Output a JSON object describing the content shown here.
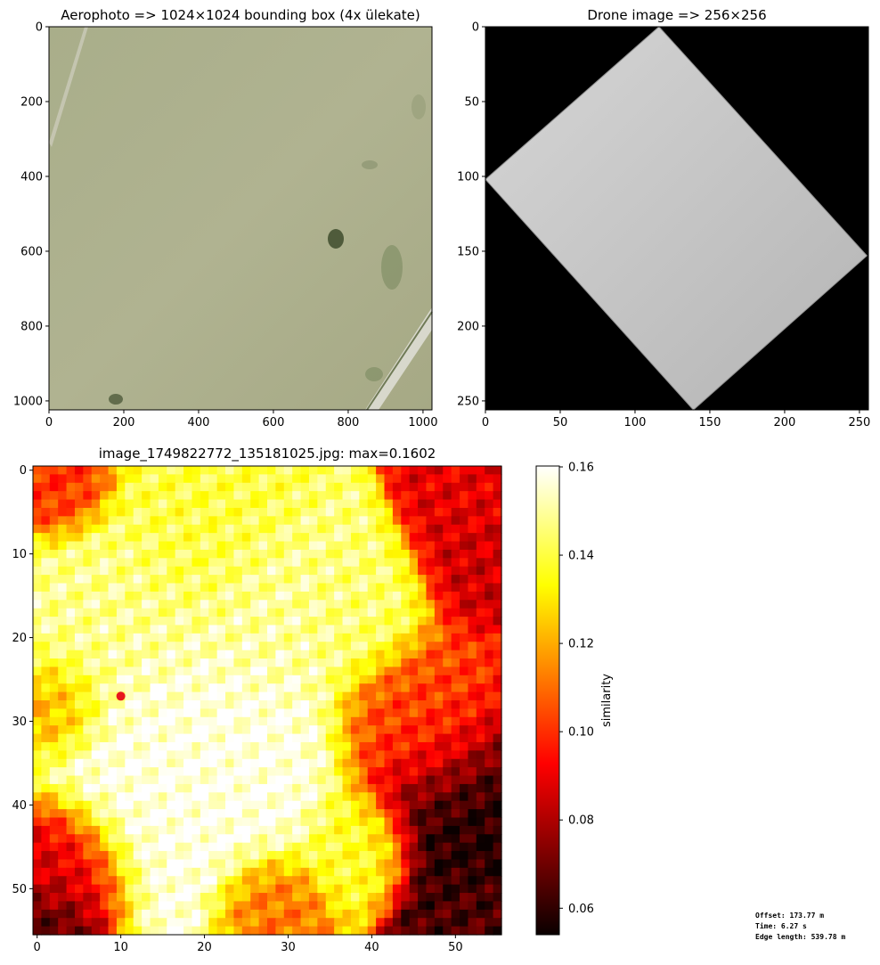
{
  "chart_data": [
    {
      "type": "image",
      "title": "Aerophoto => 1024×1024 bounding box (4x ülekate)",
      "xlim": [
        0,
        1024
      ],
      "ylim": [
        1024,
        0
      ],
      "xticks": [
        0,
        200,
        400,
        600,
        800,
        1000
      ],
      "yticks": [
        0,
        200,
        400,
        600,
        800,
        1000
      ],
      "content": "aerial orthophoto of grassland field with road in lower-right corner"
    },
    {
      "type": "image",
      "title": "Drone image => 256×256",
      "xlim": [
        0,
        256
      ],
      "ylim": [
        256,
        0
      ],
      "xticks": [
        0,
        50,
        100,
        150,
        200,
        250
      ],
      "yticks": [
        0,
        50,
        100,
        150,
        200,
        250
      ],
      "polygon_corners": [
        [
          116,
          0
        ],
        [
          255,
          153
        ],
        [
          139,
          256
        ],
        [
          0,
          102
        ]
      ],
      "background_color": "#000000",
      "fill_color": "#bdbdbd"
    },
    {
      "type": "heatmap",
      "title": "image_1749822772_135181025.jpg: max=0.1602",
      "grid_size": [
        56,
        56
      ],
      "xlim": [
        -0.5,
        55.5
      ],
      "ylim": [
        55.5,
        -0.5
      ],
      "xticks": [
        0,
        10,
        20,
        30,
        40,
        50
      ],
      "yticks": [
        0,
        10,
        20,
        30,
        40,
        50
      ],
      "colormap": "hot",
      "vmin": 0.054,
      "vmax": 0.1602,
      "max_marker": {
        "x": 10,
        "y": 27,
        "color": "#e8171c"
      },
      "colorbar": {
        "label": "similarity",
        "ticks": [
          0.06,
          0.08,
          0.1,
          0.12,
          0.14,
          0.16
        ],
        "tick_labels": [
          "0.06",
          "0.08",
          "0.10",
          "0.12",
          "0.14",
          "0.16"
        ]
      },
      "regional_values": [
        {
          "cy": 18,
          "cx": 8,
          "s": 6,
          "v": 0.148
        },
        {
          "cy": 36,
          "cx": 18,
          "s": 8,
          "v": 0.158
        },
        {
          "cy": 17,
          "cx": 28,
          "s": 5,
          "v": 0.15
        },
        {
          "cy": 16,
          "cx": 38,
          "s": 4,
          "v": 0.145
        },
        {
          "cy": 8,
          "cx": 20,
          "s": 5,
          "v": 0.14
        },
        {
          "cy": 45,
          "cx": 38,
          "s": 3,
          "v": 0.138
        },
        {
          "cy": 28,
          "cx": 2,
          "s": 3,
          "v": 0.118
        },
        {
          "cy": 48,
          "cx": 2,
          "s": 4,
          "v": 0.085
        },
        {
          "cy": 55,
          "cx": 1,
          "s": 3,
          "v": 0.062
        },
        {
          "cy": 10,
          "cx": 54,
          "s": 4,
          "v": 0.085
        },
        {
          "cy": 40,
          "cx": 54,
          "s": 6,
          "v": 0.058
        },
        {
          "cy": 30,
          "cx": 48,
          "s": 5,
          "v": 0.105
        },
        {
          "cy": 4,
          "cx": 52,
          "s": 3,
          "v": 0.09
        },
        {
          "cy": 52,
          "cx": 28,
          "s": 3,
          "v": 0.11
        },
        {
          "cy": 54,
          "cx": 52,
          "s": 3,
          "v": 0.065
        },
        {
          "cy": 2,
          "cx": 2,
          "s": 3,
          "v": 0.1
        }
      ]
    }
  ],
  "info": {
    "offset": "Offset: 173.77 m",
    "time": "Time: 6.27 s",
    "edge_length": "Edge length: 539.78 m"
  }
}
